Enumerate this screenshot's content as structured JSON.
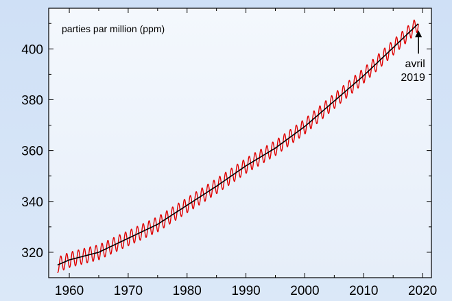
{
  "chart_data": {
    "type": "line",
    "title": "",
    "xlabel": "",
    "ylabel": "",
    "unit_label": "parties par million (ppm)",
    "xlim": [
      1956.5,
      2021.5
    ],
    "ylim": [
      310,
      416
    ],
    "x_ticks": [
      1960,
      1970,
      1980,
      1990,
      2000,
      2010,
      2020
    ],
    "y_ticks": [
      320,
      340,
      360,
      380,
      400
    ],
    "grid": false,
    "seasonal_amplitude_ppm": 3,
    "series": [
      {
        "color": "#e00000",
        "style": "monthly, seasonal oscillation",
        "x": [
          1958,
          1960,
          1965,
          1970,
          1975,
          1980,
          1985,
          1990,
          1995,
          2000,
          2005,
          2010,
          2015,
          2019.3
        ],
        "y": [
          315,
          317,
          320,
          325.5,
          331,
          338.5,
          346,
          354,
          361,
          369.5,
          379.5,
          389.5,
          400.5,
          410
        ]
      },
      {
        "color": "#000000",
        "style": "seasonally adjusted trend",
        "x": [
          1958,
          1960,
          1965,
          1970,
          1975,
          1980,
          1985,
          1990,
          1995,
          2000,
          2005,
          2010,
          2015,
          2019.3
        ],
        "y": [
          315,
          317,
          320,
          325.5,
          331,
          338.5,
          346,
          354,
          361,
          369.5,
          379.5,
          389.5,
          400.5,
          410
        ]
      }
    ],
    "annotations": [
      {
        "text_line1": "avril",
        "text_line2": "2019",
        "x": 2019.3,
        "y": 410
      }
    ]
  },
  "colors": {
    "background": "#d6e5f7",
    "plot_area": "#eef4fc",
    "axis": "#000000"
  }
}
